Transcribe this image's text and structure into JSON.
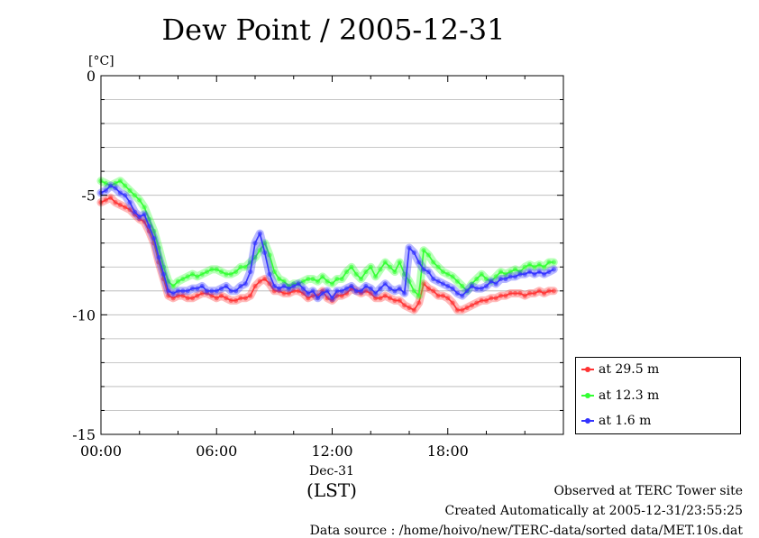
{
  "title": "Dew Point / 2005-12-31",
  "unit_label": "[°C]",
  "date_label": "Dec-31",
  "tz_label": "(LST)",
  "footer": {
    "site": "Observed at TERC Tower site",
    "created": "Created Automatically at 2005-12-31/23:55:25",
    "source": "Data source : /home/hoivo/new/TERC-data/sorted  data/MET.10s.dat"
  },
  "colors": {
    "red": "#ff3333",
    "green": "#33ff33",
    "blue": "#3333ff"
  },
  "chart_data": {
    "type": "line",
    "title": "Dew Point / 2005-12-31",
    "ylabel": "[°C]",
    "xlabel": "(LST)",
    "xlim": [
      0,
      24
    ],
    "ylim": [
      -15,
      0
    ],
    "yticks": [
      0,
      -5,
      -10,
      -15
    ],
    "yticklabels": [
      "0",
      "-5",
      "-10",
      "-15"
    ],
    "xticks": [
      0,
      6,
      12,
      18
    ],
    "xticklabels": [
      "00:00",
      "06:00",
      "12:00",
      "18:00"
    ],
    "grid": true,
    "legend_position": "right",
    "series": [
      {
        "name": "at 29.5 m",
        "color": "#ff3333",
        "x": [
          0,
          0.25,
          0.5,
          0.75,
          1,
          1.25,
          1.5,
          1.75,
          2,
          2.25,
          2.5,
          2.75,
          3,
          3.25,
          3.5,
          3.75,
          4,
          4.25,
          4.5,
          4.75,
          5,
          5.25,
          5.5,
          5.75,
          6,
          6.25,
          6.5,
          6.75,
          7,
          7.25,
          7.5,
          7.75,
          8,
          8.25,
          8.5,
          8.75,
          9,
          9.25,
          9.5,
          9.75,
          10,
          10.25,
          10.5,
          10.75,
          11,
          11.25,
          11.5,
          11.75,
          12,
          12.25,
          12.5,
          12.75,
          13,
          13.25,
          13.5,
          13.75,
          14,
          14.25,
          14.5,
          14.75,
          15,
          15.25,
          15.5,
          15.75,
          16,
          16.25,
          16.5,
          16.75,
          17,
          17.25,
          17.5,
          17.75,
          18,
          18.25,
          18.5,
          18.75,
          19,
          19.25,
          19.5,
          19.75,
          20,
          20.25,
          20.5,
          20.75,
          21,
          21.25,
          21.5,
          21.75,
          22,
          22.25,
          22.5,
          22.75,
          23,
          23.25,
          23.5
        ],
        "y": [
          -5.3,
          -5.2,
          -5.1,
          -5.3,
          -5.4,
          -5.5,
          -5.6,
          -5.8,
          -6.0,
          -6.1,
          -6.5,
          -7.0,
          -7.8,
          -8.5,
          -9.2,
          -9.3,
          -9.2,
          -9.2,
          -9.3,
          -9.3,
          -9.2,
          -9.1,
          -9.1,
          -9.2,
          -9.3,
          -9.2,
          -9.3,
          -9.4,
          -9.4,
          -9.3,
          -9.3,
          -9.2,
          -8.8,
          -8.6,
          -8.5,
          -8.7,
          -9.0,
          -9.0,
          -9.1,
          -9.1,
          -9.0,
          -9.0,
          -9.1,
          -9.3,
          -9.2,
          -9.2,
          -9.0,
          -9.3,
          -9.4,
          -9.2,
          -9.2,
          -9.1,
          -8.9,
          -9.0,
          -9.1,
          -9.0,
          -9.1,
          -9.3,
          -9.3,
          -9.2,
          -9.3,
          -9.4,
          -9.4,
          -9.6,
          -9.7,
          -9.8,
          -9.5,
          -8.7,
          -8.9,
          -9.0,
          -9.2,
          -9.2,
          -9.3,
          -9.5,
          -9.8,
          -9.8,
          -9.7,
          -9.6,
          -9.5,
          -9.4,
          -9.4,
          -9.3,
          -9.3,
          -9.2,
          -9.2,
          -9.1,
          -9.1,
          -9.1,
          -9.2,
          -9.1,
          -9.1,
          -9.0,
          -9.1,
          -9.0,
          -9.0
        ]
      },
      {
        "name": "at 12.3 m",
        "color": "#33ff33",
        "x": [
          0,
          0.25,
          0.5,
          0.75,
          1,
          1.25,
          1.5,
          1.75,
          2,
          2.25,
          2.5,
          2.75,
          3,
          3.25,
          3.5,
          3.75,
          4,
          4.25,
          4.5,
          4.75,
          5,
          5.25,
          5.5,
          5.75,
          6,
          6.25,
          6.5,
          6.75,
          7,
          7.25,
          7.5,
          7.75,
          8,
          8.25,
          8.5,
          8.75,
          9,
          9.25,
          9.5,
          9.75,
          10,
          10.25,
          10.5,
          10.75,
          11,
          11.25,
          11.5,
          11.75,
          12,
          12.25,
          12.5,
          12.75,
          13,
          13.25,
          13.5,
          13.75,
          14,
          14.25,
          14.5,
          14.75,
          15,
          15.25,
          15.5,
          15.75,
          16,
          16.25,
          16.5,
          16.75,
          17,
          17.25,
          17.5,
          17.75,
          18,
          18.25,
          18.5,
          18.75,
          19,
          19.25,
          19.5,
          19.75,
          20,
          20.25,
          20.5,
          20.75,
          21,
          21.25,
          21.5,
          21.75,
          22,
          22.25,
          22.5,
          22.75,
          23,
          23.25,
          23.5
        ],
        "y": [
          -4.4,
          -4.5,
          -4.6,
          -4.5,
          -4.4,
          -4.6,
          -4.8,
          -5.0,
          -5.2,
          -5.5,
          -6.0,
          -6.5,
          -7.2,
          -8.0,
          -8.6,
          -8.8,
          -8.6,
          -8.5,
          -8.4,
          -8.3,
          -8.4,
          -8.3,
          -8.2,
          -8.1,
          -8.1,
          -8.2,
          -8.3,
          -8.3,
          -8.2,
          -8.0,
          -8.0,
          -7.8,
          -7.6,
          -7.3,
          -7.0,
          -7.5,
          -8.2,
          -8.5,
          -8.6,
          -8.8,
          -8.7,
          -8.7,
          -8.6,
          -8.5,
          -8.5,
          -8.6,
          -8.4,
          -8.6,
          -8.7,
          -8.5,
          -8.5,
          -8.2,
          -8.0,
          -8.3,
          -8.5,
          -8.2,
          -8.0,
          -8.4,
          -8.1,
          -7.8,
          -8.0,
          -8.2,
          -7.8,
          -8.3,
          -8.6,
          -9.0,
          -9.2,
          -7.3,
          -7.5,
          -7.8,
          -8.0,
          -8.2,
          -8.3,
          -8.4,
          -8.6,
          -8.8,
          -9.0,
          -8.7,
          -8.5,
          -8.3,
          -8.5,
          -8.6,
          -8.4,
          -8.2,
          -8.3,
          -8.2,
          -8.1,
          -8.2,
          -8.0,
          -7.9,
          -8.0,
          -7.9,
          -8.0,
          -7.8,
          -7.8
        ]
      },
      {
        "name": "at 1.6 m",
        "color": "#3333ff",
        "x": [
          0,
          0.25,
          0.5,
          0.75,
          1,
          1.25,
          1.5,
          1.75,
          2,
          2.25,
          2.5,
          2.75,
          3,
          3.25,
          3.5,
          3.75,
          4,
          4.25,
          4.5,
          4.75,
          5,
          5.25,
          5.5,
          5.75,
          6,
          6.25,
          6.5,
          6.75,
          7,
          7.25,
          7.5,
          7.75,
          8,
          8.25,
          8.5,
          8.75,
          9,
          9.25,
          9.5,
          9.75,
          10,
          10.25,
          10.5,
          10.75,
          11,
          11.25,
          11.5,
          11.75,
          12,
          12.25,
          12.5,
          12.75,
          13,
          13.25,
          13.5,
          13.75,
          14,
          14.25,
          14.5,
          14.75,
          15,
          15.25,
          15.5,
          15.75,
          16,
          16.25,
          16.5,
          16.75,
          17,
          17.25,
          17.5,
          17.75,
          18,
          18.25,
          18.5,
          18.75,
          19,
          19.25,
          19.5,
          19.75,
          20,
          20.25,
          20.5,
          20.75,
          21,
          21.25,
          21.5,
          21.75,
          22,
          22.25,
          22.5,
          22.75,
          23,
          23.25,
          23.5
        ],
        "y": [
          -4.9,
          -4.8,
          -4.6,
          -4.7,
          -4.9,
          -5.0,
          -5.3,
          -5.7,
          -5.9,
          -5.8,
          -6.3,
          -6.8,
          -7.6,
          -8.3,
          -9.0,
          -9.1,
          -9.0,
          -9.0,
          -9.0,
          -8.9,
          -8.9,
          -8.8,
          -9.0,
          -9.0,
          -9.0,
          -8.9,
          -8.8,
          -9.0,
          -9.0,
          -8.8,
          -8.7,
          -8.2,
          -7.0,
          -6.6,
          -7.4,
          -8.3,
          -8.8,
          -8.9,
          -8.8,
          -8.9,
          -8.8,
          -8.7,
          -8.9,
          -9.1,
          -9.0,
          -9.3,
          -9.1,
          -9.0,
          -9.3,
          -9.0,
          -9.0,
          -8.9,
          -8.8,
          -9.0,
          -9.0,
          -8.8,
          -8.9,
          -9.1,
          -8.9,
          -8.7,
          -8.9,
          -9.0,
          -8.9,
          -9.1,
          -7.2,
          -7.4,
          -7.8,
          -8.1,
          -8.2,
          -8.5,
          -8.6,
          -8.7,
          -8.8,
          -8.9,
          -9.1,
          -9.2,
          -9.0,
          -8.8,
          -8.9,
          -8.9,
          -8.8,
          -8.6,
          -8.7,
          -8.5,
          -8.5,
          -8.4,
          -8.4,
          -8.3,
          -8.3,
          -8.2,
          -8.3,
          -8.2,
          -8.3,
          -8.2,
          -8.1
        ]
      }
    ]
  }
}
